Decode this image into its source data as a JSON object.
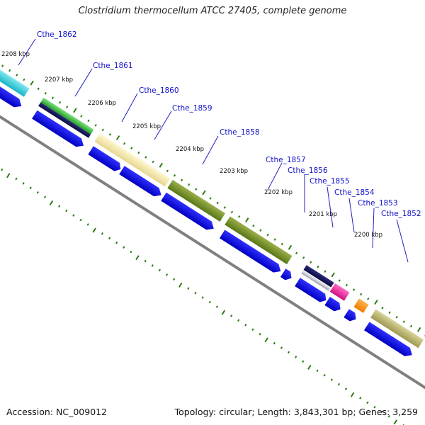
{
  "header": {
    "title": "Clostridium thermocellum ATCC 27405, complete genome"
  },
  "footer": {
    "accession": "Accession: NC_009012",
    "topology": "Topology: circular; Length: 3,843,301 bp; Genes: 3,259"
  },
  "ticks": [
    "2208 kbp",
    "2207 kbp",
    "2206 kbp",
    "2205 kbp",
    "2204 kbp",
    "2203 kbp",
    "2202 kbp",
    "2201 kbp",
    "2200 kbp"
  ],
  "genes": [
    {
      "name": "Cthe_1862",
      "color": "#2ac8d8"
    },
    {
      "name": "Cthe_1861",
      "color": "#2db82d"
    },
    {
      "name": "Cthe_1860",
      "color": "#efe4a6"
    },
    {
      "name": "Cthe_1859",
      "color": "#efe4a6"
    },
    {
      "name": "Cthe_1858",
      "color": "#6b8a1f"
    },
    {
      "name": "Cthe_1857",
      "color": "#6b8a1f"
    },
    {
      "name": "Cthe_1856",
      "color": "#14145a"
    },
    {
      "name": "Cthe_1855",
      "color": "#e0198c"
    },
    {
      "name": "Cthe_1854",
      "color": "#ff8c00"
    },
    {
      "name": "Cthe_1853",
      "color": "#ff8c00"
    },
    {
      "name": "Cthe_1852",
      "color": "#b5b06a"
    }
  ],
  "colors": {
    "cds": "#0a0ae6",
    "backbone": "#808080",
    "tick": "#2e7d16"
  }
}
